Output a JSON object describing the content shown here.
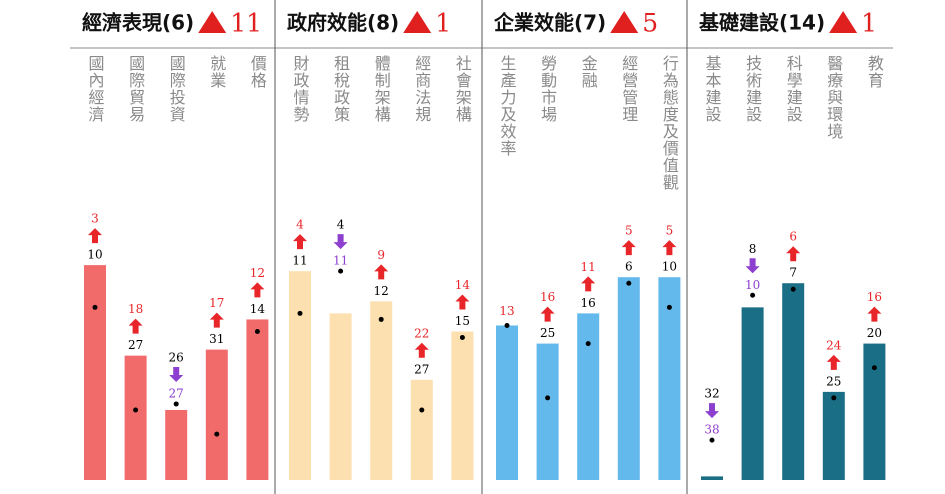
{
  "panels": [
    {
      "title": "經濟表現(6)",
      "change": 11,
      "color": "#f26b6b",
      "items": [
        {
          "label": "國內經濟",
          "rank": 3,
          "previous": 10
        },
        {
          "label": "國際貿易",
          "rank": 18,
          "previous": 27
        },
        {
          "label": "國際投資",
          "rank": 27,
          "previous": 26
        },
        {
          "label": "就業",
          "rank": 17,
          "previous": 31
        },
        {
          "label": "價格",
          "rank": 12,
          "previous": 14
        }
      ]
    },
    {
      "title": "政府效能(8)",
      "change": 1,
      "color": "#fde0b0",
      "items": [
        {
          "label": "財政情勢",
          "rank": 4,
          "previous": 11
        },
        {
          "label": "租稅政策",
          "rank": 11,
          "previous": 4
        },
        {
          "label": "體制架構",
          "rank": 9,
          "previous": 12
        },
        {
          "label": "經商法規",
          "rank": 22,
          "previous": 27
        },
        {
          "label": "社會架構",
          "rank": 14,
          "previous": 15
        }
      ]
    },
    {
      "title": "企業效能(7)",
      "change": 5,
      "color": "#64b9ec",
      "items": [
        {
          "label": "生產力及效率",
          "rank": 13,
          "previous": 13
        },
        {
          "label": "勞動市場",
          "rank": 16,
          "previous": 25
        },
        {
          "label": "金融",
          "rank": 11,
          "previous": 16
        },
        {
          "label": "經營管理",
          "rank": 5,
          "previous": 6
        },
        {
          "label": "行為態度及價值觀",
          "rank": 5,
          "previous": 10
        }
      ]
    },
    {
      "title": "基礎建設(14)",
      "change": 1,
      "color": "#1a6e85",
      "items": [
        {
          "label": "基本建設",
          "rank": 38,
          "previous": 32
        },
        {
          "label": "技術建設",
          "rank": 10,
          "previous": 8
        },
        {
          "label": "科學建設",
          "rank": 6,
          "previous": 7
        },
        {
          "label": "醫療與環境",
          "rank": 24,
          "previous": 25
        },
        {
          "label": "教育",
          "rank": 16,
          "previous": 20
        }
      ]
    }
  ],
  "ylim": [
    38.6,
    0
  ]
}
